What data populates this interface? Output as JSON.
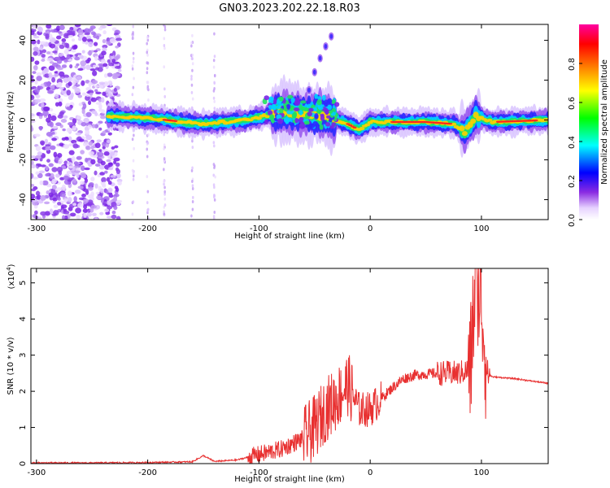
{
  "title": "GN03.2023.202.22.18.R03",
  "chart_data": [
    {
      "type": "heatmap",
      "xlabel": "Height of straight line (km)",
      "ylabel": "Frequency (Hz)",
      "xlim": [
        -305,
        160
      ],
      "ylim": [
        -50,
        48
      ],
      "x_ticks": [
        -300,
        -200,
        -100,
        0,
        100
      ],
      "y_ticks": [
        -40,
        -20,
        0,
        20,
        40
      ],
      "colorbar": {
        "label": "Normalized spectral amplitude",
        "range": [
          0.0,
          1.0
        ],
        "ticks": [
          "0.0",
          "0.2",
          "0.4",
          "0.6",
          "0.8"
        ],
        "colors": [
          "#ffffff",
          "#e6d2ff",
          "#8a2be2",
          "#0000ff",
          "#00ffff",
          "#00ff00",
          "#ffff00",
          "#ff8000",
          "#ff0000",
          "#ff00a0"
        ]
      },
      "features": {
        "noise_region_x": [
          -305,
          -235
        ],
        "main_band": [
          {
            "x": -235,
            "y": 2
          },
          {
            "x": -200,
            "y": 1
          },
          {
            "x": -150,
            "y": -2
          },
          {
            "x": -110,
            "y": 0
          },
          {
            "x": -80,
            "y": 4
          },
          {
            "x": -60,
            "y": 3
          },
          {
            "x": -40,
            "y": 2
          },
          {
            "x": -20,
            "y": -2
          },
          {
            "x": -10,
            "y": -5
          },
          {
            "x": 0,
            "y": -1
          },
          {
            "x": 50,
            "y": -1
          },
          {
            "x": 75,
            "y": -2
          },
          {
            "x": 85,
            "y": -6
          },
          {
            "x": 95,
            "y": 2
          },
          {
            "x": 110,
            "y": -1
          },
          {
            "x": 160,
            "y": 0
          }
        ],
        "rising_branch": [
          {
            "x": -55,
            "y": 15
          },
          {
            "x": -50,
            "y": 24
          },
          {
            "x": -45,
            "y": 31
          },
          {
            "x": -40,
            "y": 37
          },
          {
            "x": -35,
            "y": 42
          }
        ]
      }
    },
    {
      "type": "line",
      "xlabel": "Height of straight line (km)",
      "ylabel": "SNR (10 * v/v)",
      "y_multiplier": "(x10",
      "y_multiplier_exp": "4",
      "y_multiplier_close": ")",
      "xlim": [
        -305,
        160
      ],
      "ylim": [
        0,
        5.4
      ],
      "x_ticks": [
        -300,
        -200,
        -100,
        0,
        100
      ],
      "y_ticks": [
        0,
        1,
        2,
        3,
        4,
        5
      ],
      "series": [
        {
          "color": "#e83030",
          "points": [
            [
              -305,
              0.02
            ],
            [
              -250,
              0.02
            ],
            [
              -200,
              0.03
            ],
            [
              -160,
              0.05
            ],
            [
              -150,
              0.22
            ],
            [
              -140,
              0.06
            ],
            [
              -120,
              0.1
            ],
            [
              -100,
              0.25
            ],
            [
              -80,
              0.4
            ],
            [
              -60,
              0.7
            ],
            [
              -50,
              1.0
            ],
            [
              -40,
              1.5
            ],
            [
              -30,
              1.8
            ],
            [
              -20,
              2.2
            ],
            [
              -10,
              1.5
            ],
            [
              0,
              1.5
            ],
            [
              10,
              1.8
            ],
            [
              20,
              2.1
            ],
            [
              30,
              2.35
            ],
            [
              40,
              2.45
            ],
            [
              60,
              2.5
            ],
            [
              80,
              2.5
            ],
            [
              90,
              2.6
            ],
            [
              95,
              5.3
            ],
            [
              100,
              4.5
            ],
            [
              105,
              2.5
            ],
            [
              110,
              2.4
            ],
            [
              130,
              2.35
            ],
            [
              160,
              2.22
            ]
          ]
        }
      ]
    }
  ]
}
